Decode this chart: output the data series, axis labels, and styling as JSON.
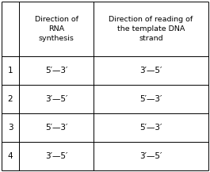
{
  "col_headers": [
    "Direction of\nRNA\nsynthesis",
    "Direction of reading of\nthe template DNA\nstrand"
  ],
  "row_labels": [
    "1",
    "2",
    "3",
    "4"
  ],
  "cell_data": [
    [
      "5′—3′",
      "3′—5′"
    ],
    [
      "3′—5′",
      "5′—3′"
    ],
    [
      "5′—3′",
      "5′—3′"
    ],
    [
      "3′—5′",
      "3′—5′"
    ]
  ],
  "bg_color": "#ffffff",
  "line_color": "#000000",
  "font_size_header": 6.8,
  "font_size_cell": 7.5,
  "font_size_row_label": 7.5,
  "fig_width": 2.65,
  "fig_height": 2.17,
  "dpi": 100
}
